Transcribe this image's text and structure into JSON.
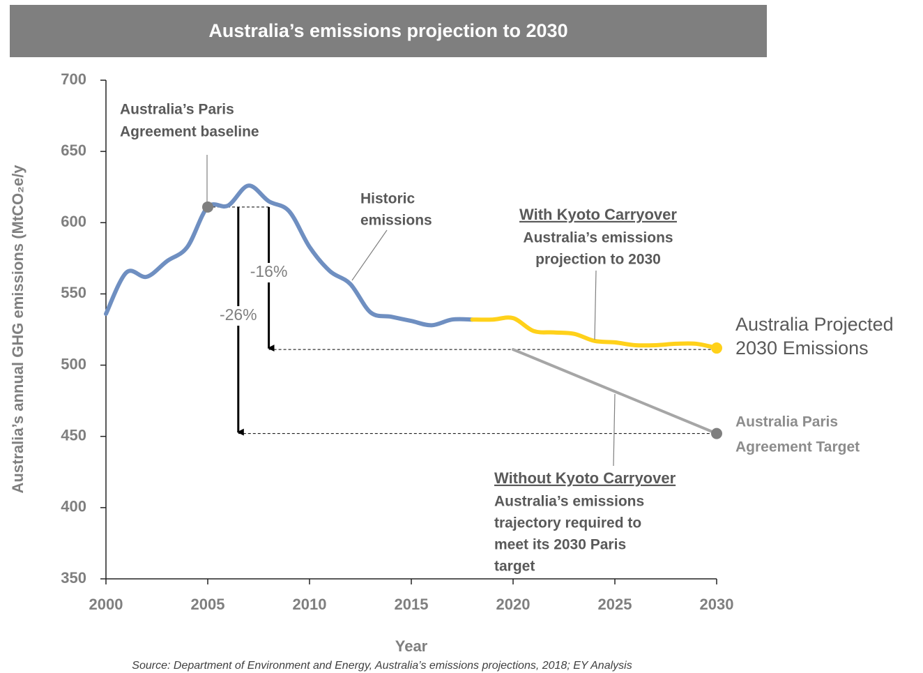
{
  "chart_data": {
    "type": "line",
    "title": "Australia’s emissions projection to 2030",
    "x_label": "Year",
    "y_label": "Australia’s annual GHG emissions (MtCO₂e/y",
    "source": "Source: Department of Environment and Energy, Australia’s emissions projections, 2018; EY Analysis",
    "xlim": [
      2000,
      2030
    ],
    "xticks": [
      2000,
      2005,
      2010,
      2015,
      2020,
      2025,
      2030
    ],
    "ylim": [
      350,
      700
    ],
    "yticks": [
      350,
      400,
      450,
      500,
      550,
      600,
      650,
      700
    ],
    "series": [
      {
        "name": "Historic emissions",
        "color": "#6f8fc1",
        "x": [
          2000,
          2001,
          2002,
          2003,
          2004,
          2005,
          2006,
          2007,
          2008,
          2009,
          2010,
          2011,
          2012,
          2013,
          2014,
          2015,
          2016,
          2017,
          2018
        ],
        "values": [
          536,
          565,
          562,
          573,
          583,
          611,
          612,
          626,
          615,
          608,
          583,
          566,
          557,
          537,
          534,
          531,
          528,
          532,
          532
        ]
      },
      {
        "name": "With Kyoto Carryover",
        "color": "#ffd11a",
        "x": [
          2018,
          2019,
          2020,
          2021,
          2022,
          2023,
          2024,
          2025,
          2026,
          2027,
          2028,
          2029,
          2030
        ],
        "values": [
          532,
          532,
          533,
          524,
          523,
          522,
          517,
          516,
          514,
          514,
          515,
          515,
          512
        ]
      },
      {
        "name": "Without Kyoto Carryover",
        "color": "#a6a6a6",
        "x": [
          2020,
          2030
        ],
        "values": [
          511,
          452
        ]
      }
    ],
    "reference_lines": [
      {
        "y": 611,
        "x": [
          2005,
          2008
        ]
      },
      {
        "y": 511,
        "x": [
          2008,
          2030
        ]
      },
      {
        "y": 452,
        "x": [
          2006.5,
          2030
        ]
      }
    ],
    "arrows": [
      {
        "x": 2008,
        "from": 611,
        "to": 511,
        "label": "-16%"
      },
      {
        "x": 2006.5,
        "from": 611,
        "to": 452,
        "label": "-26%"
      }
    ],
    "annotations": [
      {
        "lines": [
          "Australia’s Paris",
          "Agreement baseline"
        ]
      },
      {
        "lines": [
          "Historic",
          "emissions"
        ]
      },
      {
        "heading": "With Kyoto Carryover",
        "lines": [
          "Australia’s emissions",
          "projection to 2030"
        ]
      },
      {
        "lines": [
          "Australia Projected",
          "2030 Emissions"
        ]
      },
      {
        "lines": [
          "Australia Paris",
          "Agreement Target"
        ]
      },
      {
        "heading": "Without Kyoto Carryover",
        "lines": [
          "Australia’s emissions",
          "trajectory required to",
          "meet its 2030 Paris",
          "target"
        ]
      }
    ]
  }
}
